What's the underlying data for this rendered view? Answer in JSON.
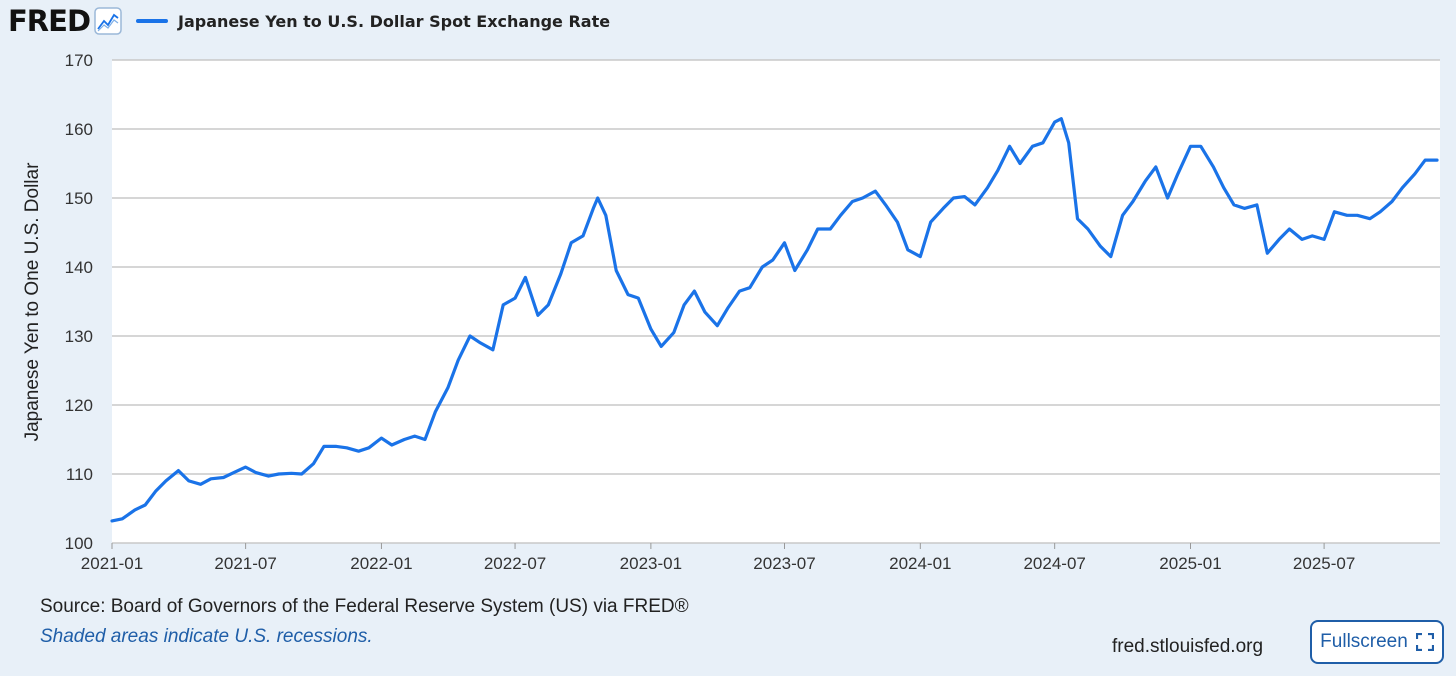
{
  "header": {
    "logo_text": "FRED",
    "logo_icon": "trend-line-icon"
  },
  "footer": {
    "source": "Source: Board of Governors of the Federal Reserve System (US) via FRED®",
    "note": "Shaded areas indicate U.S. recessions.",
    "site": "fred.stlouisfed.org",
    "fullscreen_label": "Fullscreen",
    "fullscreen_icon": "expand-corners-icon"
  },
  "colors": {
    "series": "#1a73e8",
    "accent": "#1f5ea8",
    "background": "#e8f0f8",
    "plot": "#ffffff",
    "grid": "#c8c8c8"
  },
  "chart_data": {
    "type": "line",
    "title": "",
    "xlabel": "",
    "ylabel": "Japanese Yen to One U.S. Dollar",
    "ylim": [
      100,
      170
    ],
    "yticks": [
      100,
      110,
      120,
      130,
      140,
      150,
      160,
      170
    ],
    "xlim": [
      "2021-01-01",
      "2025-12-05"
    ],
    "xticks": [
      "2021-01",
      "2021-07",
      "2022-01",
      "2022-07",
      "2023-01",
      "2023-07",
      "2024-01",
      "2024-07",
      "2025-01",
      "2025-07"
    ],
    "grid": true,
    "legend": "top-left",
    "series": [
      {
        "name": "Japanese Yen to U.S. Dollar Spot Exchange Rate",
        "color": "#1a73e8",
        "x": [
          "2021-01-01",
          "2021-01-15",
          "2021-02-01",
          "2021-02-15",
          "2021-03-01",
          "2021-03-15",
          "2021-04-01",
          "2021-04-15",
          "2021-05-01",
          "2021-05-15",
          "2021-06-01",
          "2021-06-15",
          "2021-07-01",
          "2021-07-15",
          "2021-08-01",
          "2021-08-15",
          "2021-09-01",
          "2021-09-15",
          "2021-10-01",
          "2021-10-15",
          "2021-11-01",
          "2021-11-15",
          "2021-12-01",
          "2021-12-15",
          "2022-01-01",
          "2022-01-15",
          "2022-02-01",
          "2022-02-15",
          "2022-03-01",
          "2022-03-15",
          "2022-04-01",
          "2022-04-15",
          "2022-05-01",
          "2022-05-15",
          "2022-06-01",
          "2022-06-15",
          "2022-07-01",
          "2022-07-15",
          "2022-08-01",
          "2022-08-15",
          "2022-09-01",
          "2022-09-15",
          "2022-10-01",
          "2022-10-15",
          "2022-10-21",
          "2022-11-01",
          "2022-11-15",
          "2022-12-01",
          "2022-12-15",
          "2023-01-01",
          "2023-01-15",
          "2023-02-01",
          "2023-02-15",
          "2023-03-01",
          "2023-03-15",
          "2023-04-01",
          "2023-04-15",
          "2023-05-01",
          "2023-05-15",
          "2023-06-01",
          "2023-06-15",
          "2023-07-01",
          "2023-07-15",
          "2023-08-01",
          "2023-08-15",
          "2023-09-01",
          "2023-09-15",
          "2023-10-01",
          "2023-10-15",
          "2023-11-01",
          "2023-11-15",
          "2023-12-01",
          "2023-12-15",
          "2024-01-01",
          "2024-01-15",
          "2024-02-01",
          "2024-02-15",
          "2024-03-01",
          "2024-03-15",
          "2024-04-01",
          "2024-04-15",
          "2024-05-01",
          "2024-05-15",
          "2024-06-01",
          "2024-06-15",
          "2024-07-01",
          "2024-07-10",
          "2024-07-20",
          "2024-08-01",
          "2024-08-15",
          "2024-09-01",
          "2024-09-15",
          "2024-10-01",
          "2024-10-15",
          "2024-11-01",
          "2024-11-15",
          "2024-12-01",
          "2024-12-15",
          "2025-01-01",
          "2025-01-15",
          "2025-02-01",
          "2025-02-15",
          "2025-03-01",
          "2025-03-15",
          "2025-04-01",
          "2025-04-15",
          "2025-05-01",
          "2025-05-15",
          "2025-06-01",
          "2025-06-15",
          "2025-07-01",
          "2025-07-15",
          "2025-08-01",
          "2025-08-15",
          "2025-09-01",
          "2025-09-15",
          "2025-10-01",
          "2025-10-15",
          "2025-11-01",
          "2025-11-15",
          "2025-12-01"
        ],
        "y": [
          103.2,
          103.5,
          104.8,
          105.5,
          107.5,
          109.0,
          110.5,
          109.0,
          108.5,
          109.3,
          109.5,
          110.2,
          111.0,
          110.2,
          109.7,
          110.0,
          110.1,
          110.0,
          111.5,
          114.0,
          114.0,
          113.8,
          113.3,
          113.8,
          115.2,
          114.2,
          115.0,
          115.5,
          115.0,
          119.0,
          122.5,
          126.5,
          130.0,
          129.0,
          128.0,
          134.5,
          135.5,
          138.5,
          133.0,
          134.5,
          139.0,
          143.5,
          144.5,
          148.5,
          150.0,
          147.5,
          139.5,
          136.0,
          135.5,
          131.0,
          128.5,
          130.5,
          134.5,
          136.5,
          133.5,
          131.5,
          134.0,
          136.5,
          137.0,
          140.0,
          141.0,
          143.5,
          139.5,
          142.5,
          145.5,
          145.5,
          147.5,
          149.5,
          150.0,
          151.0,
          149.0,
          146.5,
          142.5,
          141.5,
          146.5,
          148.5,
          150.0,
          150.2,
          149.0,
          151.5,
          154.0,
          157.5,
          155.0,
          157.5,
          158.0,
          161.0,
          161.5,
          158.0,
          147.0,
          145.5,
          143.0,
          141.5,
          147.5,
          149.5,
          152.5,
          154.5,
          150.0,
          153.5,
          157.5,
          157.5,
          154.5,
          151.5,
          149.0,
          148.5,
          149.0,
          142.0,
          144.0,
          145.5,
          144.0,
          144.5,
          144.0,
          148.0,
          147.5,
          147.5,
          147.0,
          148.0,
          149.5,
          151.5,
          153.5,
          155.5,
          155.5
        ]
      }
    ]
  }
}
